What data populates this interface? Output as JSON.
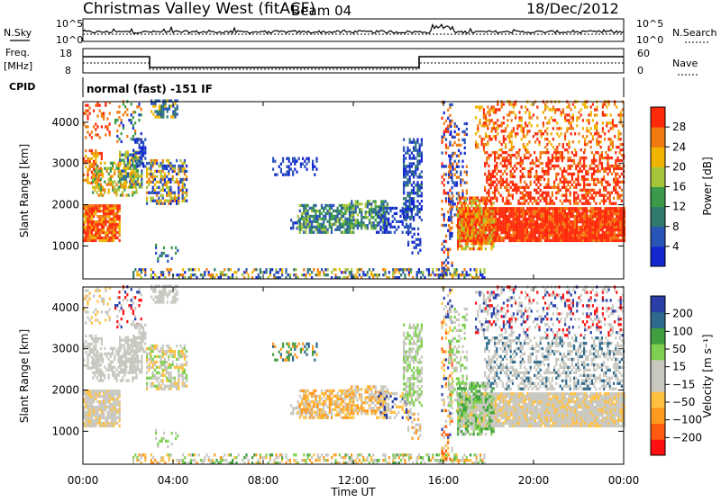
{
  "header": {
    "title": "Christmas Valley West (fitACF)",
    "beam": "Beam 04",
    "date": "18/Dec/2012"
  },
  "top_panel": {
    "left_label": "N.Sky",
    "right_label": "N.Search",
    "left_ticks": [
      "10^5",
      "10^0"
    ],
    "right_ticks": [
      "10^5",
      "10^0"
    ]
  },
  "freq_panel": {
    "left_label_1": "Freq.",
    "left_label_2": "[MHz]",
    "right_label": "Nave",
    "left_ticks": [
      "18",
      "8"
    ],
    "right_ticks": [
      "60",
      "0"
    ]
  },
  "cpid": {
    "label": "CPID",
    "text": "normal (fast) -151 IF"
  },
  "colors": {
    "power_scale": [
      "#1428d2",
      "#2a55b8",
      "#2e7a6e",
      "#3b9a4a",
      "#a6c43a",
      "#f0b400",
      "#f07a10",
      "#ff2a0a"
    ],
    "velocity_scale": [
      "#ff1010",
      "#ff5a10",
      "#ff9a20",
      "#ffc040",
      "#c8c8c0",
      "#c8c8c0",
      "#7fd050",
      "#40a040",
      "#2e6a8e",
      "#2a40a8"
    ]
  },
  "chart_data": [
    {
      "type": "heatmap",
      "name_of_quantity": "Power",
      "ylabel": "Slant Range [km]",
      "yticks": [
        "1000",
        "2000",
        "3000",
        "4000"
      ],
      "ylim": [
        200,
        4500
      ],
      "xlim_hours": [
        0,
        24
      ],
      "colorbar": {
        "label": "Power [dB]",
        "ticks": [
          "4",
          "8",
          "12",
          "16",
          "20",
          "24",
          "28"
        ],
        "range": [
          0,
          32
        ]
      }
    },
    {
      "type": "heatmap",
      "name_of_quantity": "Velocity",
      "ylabel": "Slant Range [km]",
      "yticks": [
        "1000",
        "2000",
        "3000",
        "4000"
      ],
      "ylim": [
        200,
        4500
      ],
      "xlim_hours": [
        0,
        24
      ],
      "colorbar": {
        "label": "Velocity [m s⁻¹]",
        "ticks": [
          "200",
          "100",
          "50",
          "15",
          "−15",
          "−50",
          "−100",
          "−200"
        ]
      }
    }
  ],
  "xaxis": {
    "label": "Time UT",
    "ticks": [
      "00:00",
      "04:00",
      "08:00",
      "12:00",
      "16:00",
      "20:00",
      "00:00"
    ]
  }
}
